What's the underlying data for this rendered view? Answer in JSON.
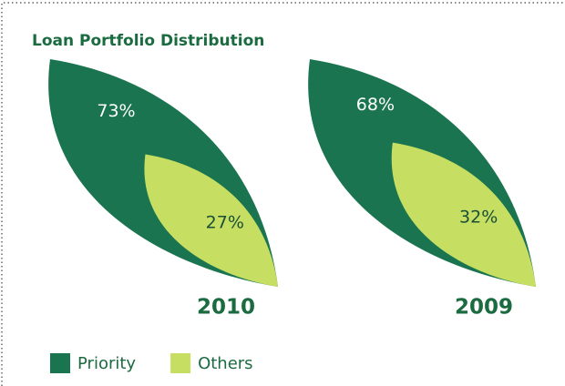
{
  "chart_data": {
    "type": "leaf",
    "title": "Loan Portfolio Distribution",
    "categories": [
      "2010",
      "2009"
    ],
    "series": [
      {
        "name": "Priority",
        "color": "#1a7450",
        "values": [
          73,
          68
        ],
        "value_labels": [
          "73%",
          "68%"
        ]
      },
      {
        "name": "Others",
        "color": "#c6df62",
        "values": [
          27,
          32
        ],
        "value_labels": [
          "27%",
          "32%"
        ]
      }
    ],
    "legend": "bottom-left"
  }
}
